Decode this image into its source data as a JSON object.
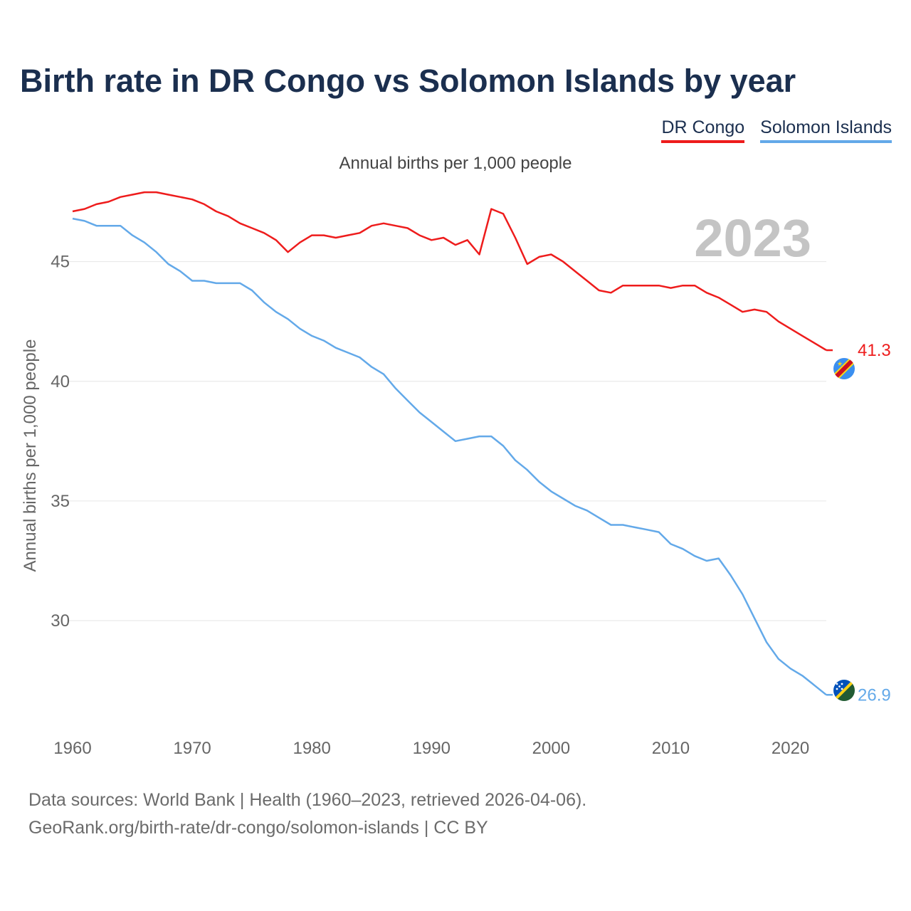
{
  "title": "Birth rate in DR Congo vs Solomon Islands by year",
  "legend": [
    {
      "label": "DR Congo",
      "color": "#ee1c1c"
    },
    {
      "label": "Solomon Islands",
      "color": "#63a9e9"
    }
  ],
  "subtitle": "Annual births per 1,000 people",
  "year_label": "2023",
  "footer": {
    "line1": "Data sources: World Bank | Health (1960–2023, retrieved 2026-04-06).",
    "line2": "GeoRank.org/birth-rate/dr-congo/solomon-islands | CC BY"
  },
  "chart_data": {
    "type": "line",
    "title": "Birth rate in DR Congo vs Solomon Islands by year",
    "xlabel": "",
    "ylabel": "Annual births per 1,000 people",
    "xlim": [
      1960,
      2023
    ],
    "ylim": [
      25.6,
      48.2
    ],
    "x_ticks": [
      1960,
      1970,
      1980,
      1990,
      2000,
      2010,
      2020
    ],
    "y_ticks": [
      30,
      35,
      40,
      45
    ],
    "grid": true,
    "x": [
      1960,
      1961,
      1962,
      1963,
      1964,
      1965,
      1966,
      1967,
      1968,
      1969,
      1970,
      1971,
      1972,
      1973,
      1974,
      1975,
      1976,
      1977,
      1978,
      1979,
      1980,
      1981,
      1982,
      1983,
      1984,
      1985,
      1986,
      1987,
      1988,
      1989,
      1990,
      1991,
      1992,
      1993,
      1994,
      1995,
      1996,
      1997,
      1998,
      1999,
      2000,
      2001,
      2002,
      2003,
      2004,
      2005,
      2006,
      2007,
      2008,
      2009,
      2010,
      2011,
      2012,
      2013,
      2014,
      2015,
      2016,
      2017,
      2018,
      2019,
      2020,
      2021,
      2022,
      2023
    ],
    "series": [
      {
        "name": "DR Congo",
        "color": "#ee1c1c",
        "end_label": "41.3",
        "values": [
          47.1,
          47.2,
          47.4,
          47.5,
          47.7,
          47.8,
          47.9,
          47.9,
          47.8,
          47.7,
          47.6,
          47.4,
          47.1,
          46.9,
          46.6,
          46.4,
          46.2,
          45.9,
          45.4,
          45.8,
          46.1,
          46.1,
          46.0,
          46.1,
          46.2,
          46.5,
          46.6,
          46.5,
          46.4,
          46.1,
          45.9,
          46.0,
          45.7,
          45.9,
          45.3,
          47.2,
          47.0,
          46.0,
          44.9,
          45.2,
          45.3,
          45.0,
          44.6,
          44.2,
          43.8,
          43.7,
          44.0,
          44.0,
          44.0,
          44.0,
          43.9,
          44.0,
          44.0,
          43.7,
          43.5,
          43.2,
          42.9,
          43.0,
          42.9,
          42.5,
          42.2,
          41.9,
          41.6,
          41.3
        ]
      },
      {
        "name": "Solomon Islands",
        "color": "#63a9e9",
        "end_label": "26.9",
        "values": [
          46.8,
          46.7,
          46.5,
          46.5,
          46.5,
          46.1,
          45.8,
          45.4,
          44.9,
          44.6,
          44.2,
          44.2,
          44.1,
          44.1,
          44.1,
          43.8,
          43.3,
          42.9,
          42.6,
          42.2,
          41.9,
          41.7,
          41.4,
          41.2,
          41.0,
          40.6,
          40.3,
          39.7,
          39.2,
          38.7,
          38.3,
          37.9,
          37.5,
          37.6,
          37.7,
          37.7,
          37.3,
          36.7,
          36.3,
          35.8,
          35.4,
          35.1,
          34.8,
          34.6,
          34.3,
          34.0,
          34.0,
          33.9,
          33.8,
          33.7,
          33.2,
          33.0,
          32.7,
          32.5,
          32.6,
          31.9,
          31.1,
          30.1,
          29.1,
          28.4,
          28.0,
          27.7,
          27.3,
          26.9
        ]
      }
    ]
  }
}
